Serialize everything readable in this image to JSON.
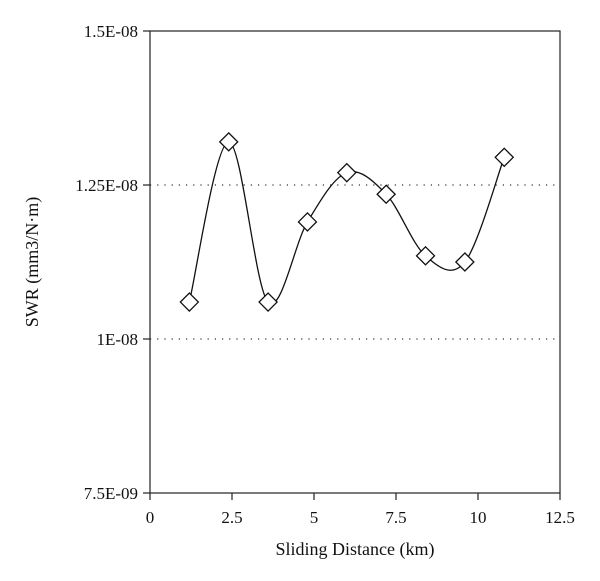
{
  "chart_data": {
    "type": "scatter",
    "xlabel": "Sliding Distance (km)",
    "ylabel": "SWR (mm3/N·m)",
    "xlim": [
      0,
      12.5
    ],
    "ylim": [
      7.5e-09,
      1.5e-08
    ],
    "x_ticks": [
      0,
      2.5,
      5,
      7.5,
      10,
      12.5
    ],
    "x_tick_labels": [
      "0",
      "2.5",
      "5",
      "7.5",
      "10",
      "12.5"
    ],
    "y_ticks": [
      7.5e-09,
      1e-08,
      1.25e-08,
      1.5e-08
    ],
    "y_tick_labels": [
      "7.5E-09",
      "1E-08",
      "1.25E-08",
      "1.5E-08"
    ],
    "grid": {
      "horizontal_dotted_at": [
        1e-08,
        1.25e-08
      ]
    },
    "marker": "diamond",
    "line": "smooth",
    "series": [
      {
        "x": [
          1.2,
          2.4,
          3.6,
          4.8,
          6.0,
          7.2,
          8.4,
          9.6,
          10.8
        ],
        "y": [
          1.06e-08,
          1.32e-08,
          1.06e-08,
          1.19e-08,
          1.27e-08,
          1.235e-08,
          1.135e-08,
          1.125e-08,
          1.295e-08
        ]
      }
    ]
  }
}
